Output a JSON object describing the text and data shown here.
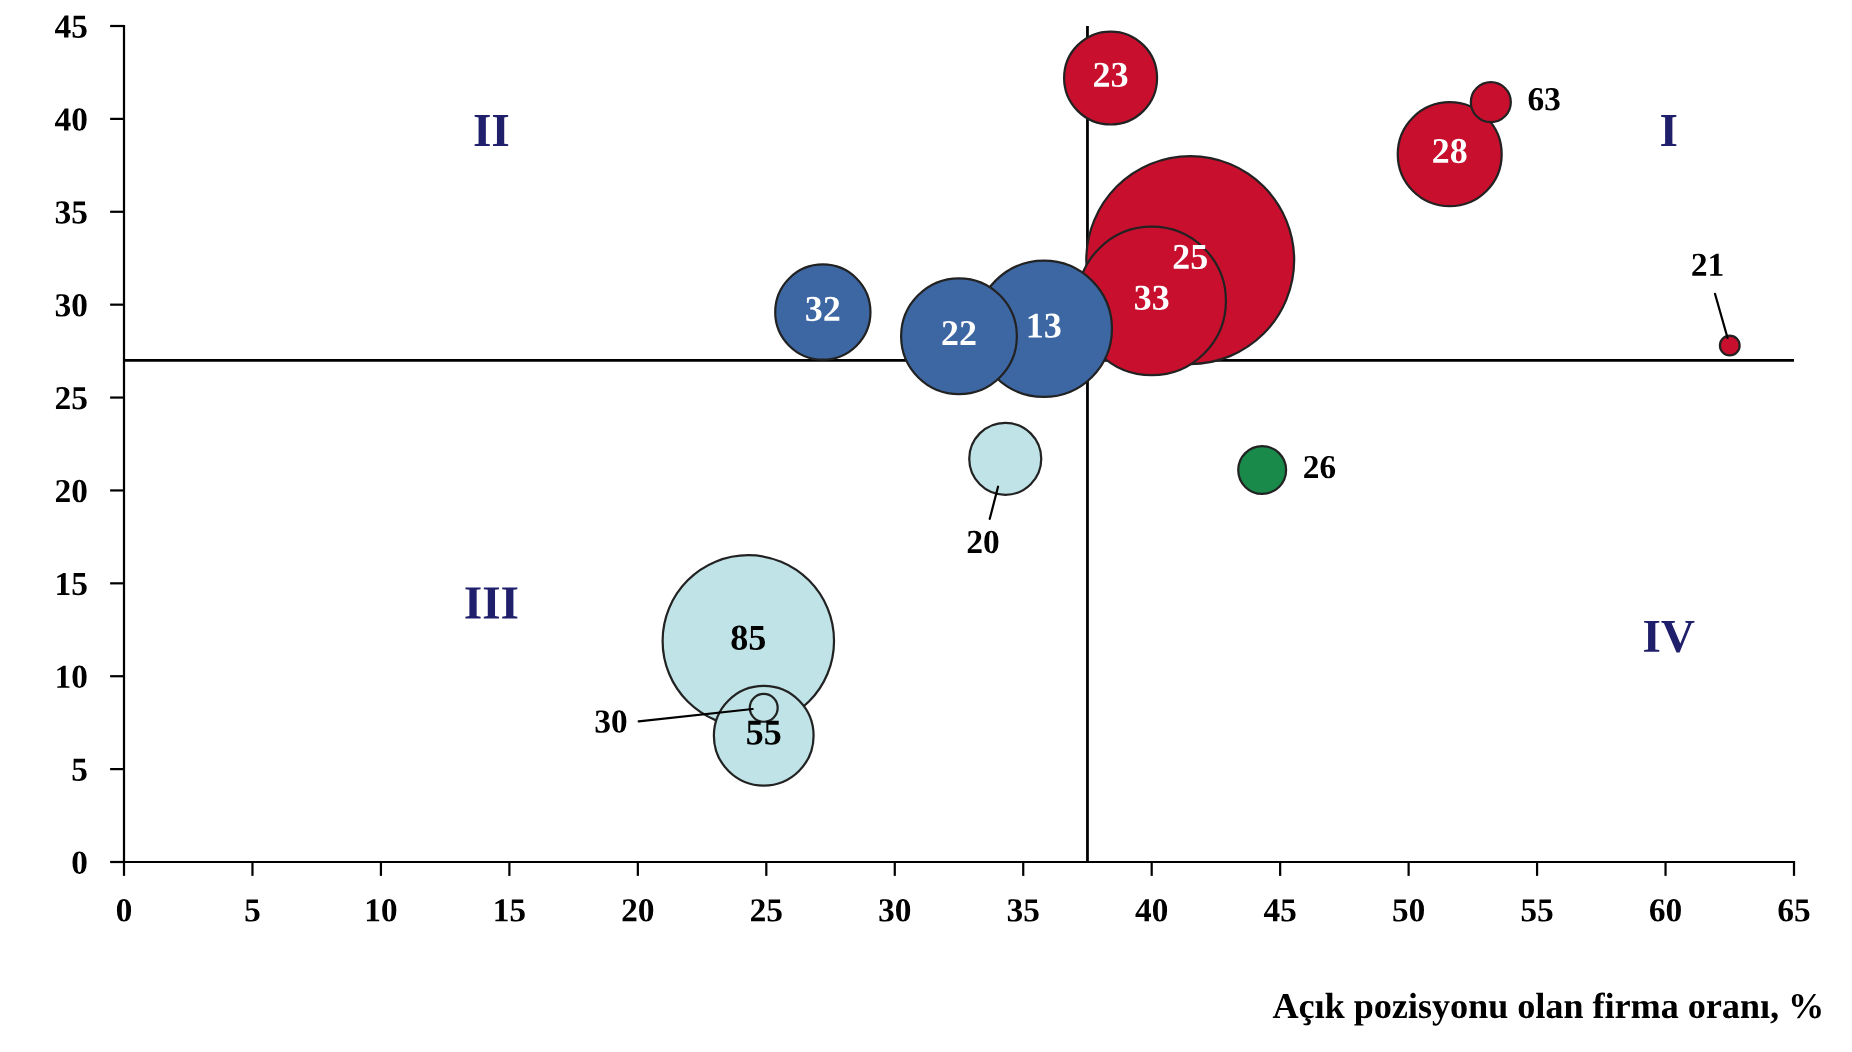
{
  "chart_data": {
    "type": "bubble",
    "xlabel": "Açık pozisyonu olan firma oranı, %",
    "series": [
      {
        "color": "#c8102e",
        "x": [
          41.5,
          40.0,
          38.4,
          51.6,
          53.2,
          62.5
        ],
        "values": [
          32.4,
          30.2,
          42.2,
          38.1,
          40.9,
          27.8
        ],
        "sizes": [
          1,
          0.51,
          0.2,
          0.25,
          0.037,
          0.009
        ]
      },
      {
        "color": "#3d67a3",
        "x": [
          35.8,
          32.5,
          27.2
        ],
        "values": [
          28.7,
          28.3,
          29.6
        ],
        "sizes": [
          0.43,
          0.31,
          0.21
        ]
      },
      {
        "color": "#bfe3e6",
        "x": [
          24.3,
          24.9,
          24.9,
          34.3
        ],
        "values": [
          11.9,
          6.8,
          8.3,
          21.7
        ],
        "sizes": [
          0.68,
          0.23,
          0.018,
          0.12
        ]
      },
      {
        "color": "#1a8a4a",
        "x": [
          44.3
        ],
        "values": [
          21.1
        ],
        "sizes": [
          0.053
        ]
      }
    ],
    "xlim": [
      0,
      65
    ],
    "ylim": [
      0,
      45
    ],
    "xticks": [
      0,
      5,
      10,
      15,
      20,
      25,
      30,
      35,
      40,
      45,
      50,
      55,
      60,
      65
    ],
    "yticks": [
      0,
      5,
      10,
      15,
      20,
      25,
      30,
      35,
      40,
      45
    ],
    "ref_lines": [
      {
        "axis": "y",
        "value": 27,
        "color": "#000000"
      },
      {
        "axis": "x",
        "value": 37.5,
        "color": "#000000"
      }
    ],
    "grid": false,
    "annotations": [
      "I",
      "II",
      "III",
      "IV",
      {
        "text": "25",
        "x": 41.5,
        "y": 32.4
      },
      {
        "text": "33",
        "x": 40.0,
        "y": 30.2
      },
      {
        "text": "23",
        "x": 38.4,
        "y": 42.2
      },
      {
        "text": "28",
        "x": 51.6,
        "y": 38.1
      },
      {
        "text": "63",
        "x": 53.2,
        "y": 40.9
      },
      {
        "text": "21",
        "x": 62.5,
        "y": 27.8
      },
      {
        "text": "13",
        "x": 35.8,
        "y": 28.7
      },
      {
        "text": "22",
        "x": 32.5,
        "y": 28.3
      },
      {
        "text": "32",
        "x": 27.2,
        "y": 29.6
      },
      {
        "text": "85",
        "x": 24.3,
        "y": 11.9
      },
      {
        "text": "55",
        "x": 24.9,
        "y": 6.8
      },
      {
        "text": "30",
        "x": 24.9,
        "y": 8.3
      },
      {
        "text": "20",
        "x": 34.3,
        "y": 21.7
      },
      {
        "text": "26",
        "x": 44.3,
        "y": 21.1
      }
    ]
  }
}
